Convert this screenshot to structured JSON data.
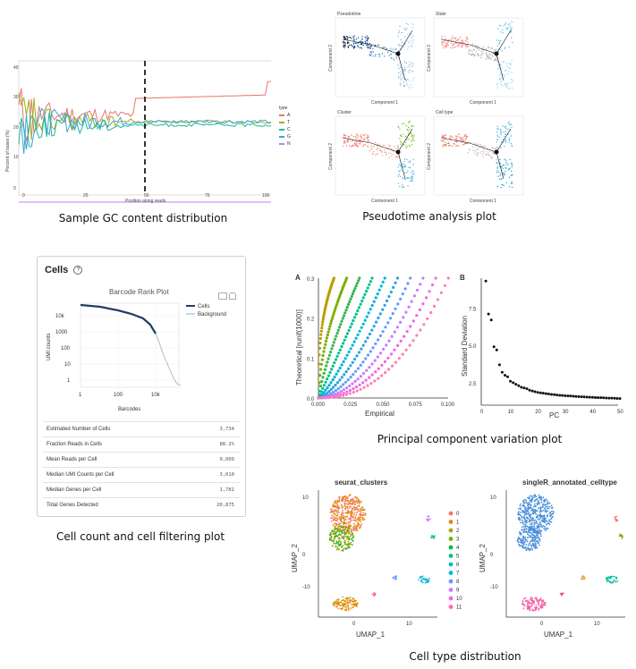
{
  "captions": {
    "gc": "Sample GC content distribution",
    "pseudotime": "Pseudotime analysis plot",
    "cellcount": "Cell count and cell filtering plot",
    "pca": "Principal component variation plot",
    "celltype": "Cell type distribution"
  },
  "gc_plot": {
    "ylabel": "Percent of bases (%)",
    "xlabel": "Position along reads",
    "legend_title": "type",
    "legend": [
      "A",
      "T",
      "C",
      "G",
      "N"
    ],
    "colors": [
      "#e8756b",
      "#9cae1a",
      "#20b89a",
      "#3ba3e0",
      "#c77ce6"
    ],
    "yticks": [
      "0",
      "10",
      "20",
      "30",
      "40"
    ],
    "xticks": [
      "0",
      "25",
      "50",
      "75",
      "100"
    ]
  },
  "pseudotime": {
    "panel_labels": [
      "Pseudotime",
      "State",
      "Cluster",
      "Cell type"
    ],
    "axis_x": "Component 1",
    "axis_y": "Component 2"
  },
  "cells_card": {
    "title": "Cells",
    "help_icon": "question-icon",
    "plot_title": "Barcode Rank Plot",
    "legend_cells": "Cells",
    "legend_background": "Background",
    "ylabel": "UMI counts",
    "xlabel": "Barcodes",
    "yticks": [
      "10k",
      "1000",
      "100",
      "10",
      "1"
    ],
    "xticks": [
      "1",
      "100",
      "10k"
    ],
    "metrics": [
      {
        "label": "Estimated Number of Cells",
        "value": "3,734"
      },
      {
        "label": "Fraction Reads in Cells",
        "value": "88.2%"
      },
      {
        "label": "Mean Reads per Cell",
        "value": "9,009"
      },
      {
        "label": "Median UMI Counts per Cell",
        "value": "3,010"
      },
      {
        "label": "Median Genes per Cell",
        "value": "1,781"
      },
      {
        "label": "Total Genes Detected",
        "value": "20,875"
      }
    ]
  },
  "chart_data": [
    {
      "type": "line",
      "title": "Sample GC content distribution",
      "xlabel": "Position along reads",
      "ylabel": "Percent of bases (%)",
      "xlim": [
        0,
        100
      ],
      "ylim": [
        0,
        40
      ],
      "series": [
        {
          "name": "A",
          "approx_level": 26
        },
        {
          "name": "T",
          "approx_level": 24
        },
        {
          "name": "C",
          "approx_level": 23
        },
        {
          "name": "G",
          "approx_level": 24
        },
        {
          "name": "N",
          "approx_level": 0
        }
      ]
    },
    {
      "type": "scatter",
      "title": "A",
      "xlabel": "Empirical",
      "ylabel": "Theoretical [runif(1000)]",
      "xlim": [
        0,
        0.1
      ],
      "ylim": [
        0,
        0.3
      ],
      "xticks": [
        "0.000",
        "0.025",
        "0.050",
        "0.075",
        "0.100"
      ],
      "yticks": [
        "0.0",
        "0.1",
        "0.2",
        "0.3"
      ]
    },
    {
      "type": "scatter",
      "title": "B",
      "xlabel": "PC",
      "ylabel": "Standard Deviation",
      "xlim": [
        0,
        50
      ],
      "ylim": [
        1,
        9.5
      ],
      "xticks": [
        "0",
        "10",
        "20",
        "30",
        "40",
        "50"
      ],
      "yticks": [
        "2.5",
        "5.0",
        "7.5"
      ],
      "x": [
        1,
        2,
        3,
        4,
        5,
        6,
        7,
        8,
        9,
        10,
        11,
        12,
        13,
        14,
        15,
        16,
        17,
        18,
        19,
        20,
        21,
        22,
        23,
        24,
        25,
        26,
        27,
        28,
        29,
        30,
        31,
        32,
        33,
        34,
        35,
        36,
        37,
        38,
        39,
        40,
        41,
        42,
        43,
        44,
        45,
        46,
        47,
        48,
        49,
        50
      ],
      "y": [
        9.3,
        7.1,
        6.7,
        4.9,
        4.7,
        3.7,
        3.2,
        3.0,
        2.9,
        2.6,
        2.5,
        2.4,
        2.3,
        2.2,
        2.15,
        2.1,
        2.0,
        1.95,
        1.9,
        1.85,
        1.82,
        1.8,
        1.77,
        1.75,
        1.72,
        1.7,
        1.68,
        1.66,
        1.65,
        1.63,
        1.62,
        1.61,
        1.6,
        1.58,
        1.57,
        1.56,
        1.55,
        1.54,
        1.53,
        1.52,
        1.51,
        1.5,
        1.5,
        1.49,
        1.48,
        1.47,
        1.47,
        1.46,
        1.45,
        1.44
      ]
    },
    {
      "type": "scatter",
      "title": "seurat_clusters",
      "xlabel": "UMAP_1",
      "ylabel": "UMAP_2",
      "xticks": [
        "0",
        "10"
      ],
      "yticks": [
        "10",
        "0",
        "-10"
      ],
      "legend": [
        "0",
        "1",
        "2",
        "3",
        "4",
        "5",
        "6",
        "7",
        "8",
        "9",
        "10",
        "11"
      ],
      "colors": [
        "#f8766d",
        "#de8c00",
        "#b79f00",
        "#7cae00",
        "#00ba38",
        "#00c08b",
        "#00bfc4",
        "#00b4f0",
        "#619cff",
        "#c77cff",
        "#f564e3",
        "#ff64b0"
      ]
    },
    {
      "type": "scatter",
      "title": "singleR_annotated_celltype",
      "xlabel": "UMAP_1",
      "ylabel": "UMAP_2",
      "xticks": [
        "0",
        "10"
      ],
      "yticks": [
        "10",
        "0",
        "-10"
      ]
    }
  ]
}
